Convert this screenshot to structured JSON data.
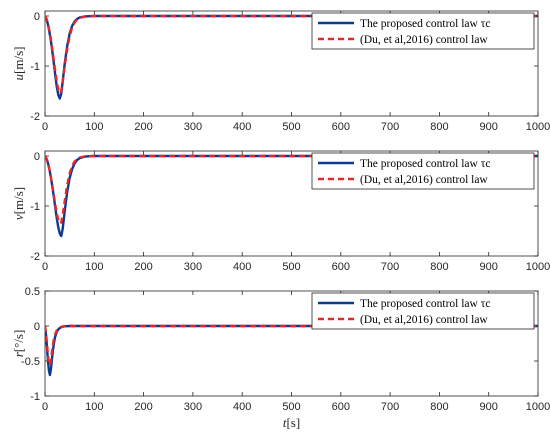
{
  "chart_data": [
    {
      "type": "line",
      "ylabel_var": "u",
      "ylabel_unit": "[m/s]",
      "xlim": [
        0,
        1000
      ],
      "ylim": [
        -2,
        0.1
      ],
      "yticks": [
        -2,
        -1,
        0
      ],
      "xticks": [
        0,
        100,
        200,
        300,
        400,
        500,
        600,
        700,
        800,
        900,
        1000
      ],
      "legend_position": "top-right",
      "grid": false,
      "series": [
        {
          "name": "The proposed control law τc",
          "color": "#0b3a8e",
          "style": "solid",
          "x": [
            0,
            3,
            6,
            9,
            12,
            15,
            18,
            21,
            24,
            27,
            30,
            33,
            36,
            40,
            45,
            50,
            55,
            60,
            65,
            70,
            80,
            90,
            100,
            120,
            1000
          ],
          "y": [
            0,
            -0.06,
            -0.17,
            -0.32,
            -0.5,
            -0.72,
            -0.95,
            -1.2,
            -1.42,
            -1.58,
            -1.65,
            -1.55,
            -1.3,
            -0.95,
            -0.6,
            -0.35,
            -0.2,
            -0.11,
            -0.06,
            -0.03,
            -0.01,
            -0.003,
            0,
            0,
            0
          ]
        },
        {
          "name": "(Du, et al,2016) control law",
          "color": "#e8262b",
          "style": "dashed",
          "x": [
            0,
            3,
            6,
            9,
            12,
            15,
            18,
            21,
            24,
            27,
            30,
            33,
            36,
            40,
            45,
            50,
            55,
            60,
            65,
            70,
            80,
            90,
            100,
            120,
            1000
          ],
          "y": [
            0,
            -0.05,
            -0.15,
            -0.3,
            -0.47,
            -0.68,
            -0.9,
            -1.12,
            -1.33,
            -1.47,
            -1.55,
            -1.5,
            -1.3,
            -1.0,
            -0.66,
            -0.4,
            -0.23,
            -0.13,
            -0.07,
            -0.04,
            -0.012,
            -0.004,
            0,
            0,
            0
          ]
        }
      ]
    },
    {
      "type": "line",
      "ylabel_var": "v",
      "ylabel_unit": "[m/s]",
      "xlim": [
        0,
        1000
      ],
      "ylim": [
        -2,
        0.1
      ],
      "yticks": [
        -2,
        -1,
        0
      ],
      "xticks": [
        0,
        100,
        200,
        300,
        400,
        500,
        600,
        700,
        800,
        900,
        1000
      ],
      "legend_position": "top-right",
      "grid": false,
      "series": [
        {
          "name": "The proposed control law τc",
          "color": "#0b3a8e",
          "style": "solid",
          "x": [
            0,
            3,
            6,
            9,
            12,
            15,
            18,
            21,
            24,
            27,
            30,
            33,
            36,
            40,
            45,
            50,
            55,
            60,
            65,
            70,
            80,
            90,
            100,
            120,
            1000
          ],
          "y": [
            0,
            -0.05,
            -0.14,
            -0.27,
            -0.43,
            -0.62,
            -0.82,
            -1.04,
            -1.25,
            -1.43,
            -1.55,
            -1.6,
            -1.45,
            -1.1,
            -0.72,
            -0.44,
            -0.26,
            -0.15,
            -0.08,
            -0.045,
            -0.014,
            -0.004,
            0,
            0,
            0
          ]
        },
        {
          "name": "(Du, et al,2016) control law",
          "color": "#e8262b",
          "style": "dashed",
          "x": [
            0,
            3,
            6,
            9,
            12,
            15,
            18,
            21,
            24,
            27,
            30,
            33,
            36,
            40,
            45,
            50,
            55,
            60,
            65,
            70,
            80,
            90,
            100,
            120,
            1000
          ],
          "y": [
            0,
            -0.05,
            -0.14,
            -0.27,
            -0.43,
            -0.6,
            -0.79,
            -0.98,
            -1.15,
            -1.28,
            -1.35,
            -1.33,
            -1.18,
            -0.9,
            -0.58,
            -0.35,
            -0.2,
            -0.11,
            -0.06,
            -0.03,
            -0.01,
            -0.003,
            0,
            0,
            0
          ]
        }
      ]
    },
    {
      "type": "line",
      "ylabel_var": "r",
      "ylabel_unit": "[°/s]",
      "xlim": [
        0,
        1000
      ],
      "ylim": [
        -1,
        0.5
      ],
      "yticks": [
        -1,
        -0.5,
        0,
        0.5
      ],
      "xticks": [
        0,
        100,
        200,
        300,
        400,
        500,
        600,
        700,
        800,
        900,
        1000
      ],
      "xlabel_var": "t",
      "xlabel_unit": "[s]",
      "legend_position": "top-right",
      "grid": false,
      "series": [
        {
          "name": "The proposed control law τc",
          "color": "#0b3a8e",
          "style": "solid",
          "x": [
            0,
            2,
            4,
            6,
            8,
            10,
            12,
            14,
            16,
            18,
            20,
            24,
            28,
            32,
            36,
            40,
            50,
            60,
            80,
            100,
            1000
          ],
          "y": [
            0,
            -0.12,
            -0.3,
            -0.5,
            -0.64,
            -0.7,
            -0.62,
            -0.48,
            -0.35,
            -0.25,
            -0.17,
            -0.08,
            -0.04,
            -0.02,
            -0.01,
            -0.005,
            0,
            0,
            0,
            0,
            0
          ]
        },
        {
          "name": "(Du, et al,2016) control law",
          "color": "#e8262b",
          "style": "dashed",
          "x": [
            0,
            2,
            4,
            6,
            8,
            10,
            12,
            14,
            16,
            18,
            20,
            24,
            28,
            32,
            36,
            40,
            50,
            60,
            80,
            100,
            1000
          ],
          "y": [
            0,
            -0.1,
            -0.26,
            -0.42,
            -0.53,
            -0.56,
            -0.5,
            -0.38,
            -0.27,
            -0.19,
            -0.13,
            -0.06,
            -0.03,
            -0.015,
            -0.007,
            -0.003,
            0,
            0,
            0,
            0,
            0
          ]
        }
      ]
    }
  ]
}
